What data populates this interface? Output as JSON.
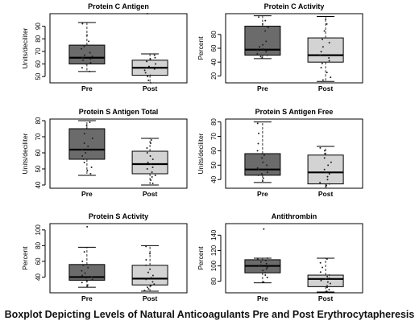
{
  "figure": {
    "caption": "Boxplot Depicting Levels of Natural Anticoagulants Pre and Post Erythrocytapheresis"
  },
  "colors": {
    "pre_box": "#6b6b6b",
    "post_box": "#d3d3d3",
    "axis": "#000000",
    "points": "#222222"
  },
  "chart_data": [
    {
      "type": "box",
      "title": "Protein C Antigen",
      "ylabel": "Units/deciliter",
      "ylim": [
        45,
        100
      ],
      "yticks": [
        50,
        60,
        70,
        80,
        90
      ],
      "categories": [
        "Pre",
        "Post"
      ],
      "boxes": [
        {
          "whislo": 54,
          "q1": 60,
          "med": 65,
          "q3": 75,
          "whishi": 93,
          "points": [
            54,
            57,
            60,
            61,
            63,
            64,
            65,
            66,
            67,
            69,
            72,
            74,
            78,
            83,
            92
          ]
        },
        {
          "whislo": 45,
          "q1": 51,
          "med": 57,
          "q3": 63,
          "whishi": 68,
          "points": [
            45,
            47,
            50,
            51,
            53,
            55,
            56,
            57,
            58,
            60,
            62,
            64,
            65,
            67,
            100
          ]
        }
      ]
    },
    {
      "type": "box",
      "title": "Protein C Activity",
      "ylabel": "Percent",
      "ylim": [
        10,
        110
      ],
      "yticks": [
        20,
        40,
        60,
        80
      ],
      "categories": [
        "Pre",
        "Post"
      ],
      "boxes": [
        {
          "whislo": 45,
          "q1": 50,
          "med": 58,
          "q3": 92,
          "whishi": 107,
          "points": [
            46,
            48,
            50,
            52,
            55,
            57,
            59,
            62,
            65,
            70,
            85,
            90,
            95,
            100,
            105
          ]
        },
        {
          "whislo": 12,
          "q1": 40,
          "med": 50,
          "q3": 75,
          "whishi": 106,
          "points": [
            14,
            18,
            25,
            32,
            38,
            42,
            46,
            50,
            55,
            62,
            68,
            73,
            85,
            95,
            102
          ]
        }
      ]
    },
    {
      "type": "box",
      "title": "Protein S Antigen Total",
      "ylabel": "Units/deciliter",
      "ylim": [
        38,
        81
      ],
      "yticks": [
        40,
        50,
        60,
        70,
        80
      ],
      "categories": [
        "Pre",
        "Post"
      ],
      "boxes": [
        {
          "whislo": 46,
          "q1": 56,
          "med": 62,
          "q3": 75,
          "whishi": 80,
          "points": [
            47,
            49,
            51,
            54,
            56,
            58,
            60,
            62,
            64,
            66,
            69,
            72,
            75,
            77,
            79
          ]
        },
        {
          "whislo": 40,
          "q1": 47,
          "med": 53,
          "q3": 61,
          "whishi": 69,
          "points": [
            41,
            43,
            45,
            46,
            48,
            50,
            51,
            53,
            54,
            56,
            58,
            60,
            63,
            66,
            68
          ]
        }
      ]
    },
    {
      "type": "box",
      "title": "Protein S Antigen Free",
      "ylabel": "Units/deciliter",
      "ylim": [
        34,
        82
      ],
      "yticks": [
        40,
        50,
        60,
        70,
        80
      ],
      "categories": [
        "Pre",
        "Post"
      ],
      "boxes": [
        {
          "whislo": 38,
          "q1": 43,
          "med": 47,
          "q3": 58,
          "whishi": 80,
          "points": [
            39,
            41,
            43,
            44,
            45,
            47,
            48,
            50,
            52,
            55,
            57,
            60,
            65,
            72,
            79
          ]
        },
        {
          "whislo": 34,
          "q1": 37,
          "med": 45,
          "q3": 57,
          "whishi": 63,
          "points": [
            35,
            36,
            37,
            38,
            40,
            42,
            44,
            45,
            47,
            50,
            52,
            55,
            58,
            60,
            62
          ]
        }
      ]
    },
    {
      "type": "box",
      "title": "Protein S Activity",
      "ylabel": "Percent",
      "ylim": [
        20,
        108
      ],
      "yticks": [
        40,
        60,
        80,
        100
      ],
      "categories": [
        "Pre",
        "Post"
      ],
      "boxes": [
        {
          "whislo": 27,
          "q1": 36,
          "med": 40,
          "q3": 56,
          "whishi": 78,
          "points": [
            28,
            30,
            33,
            35,
            37,
            39,
            40,
            42,
            45,
            48,
            52,
            55,
            60,
            72,
            104
          ]
        },
        {
          "whislo": 22,
          "q1": 30,
          "med": 38,
          "q3": 55,
          "whishi": 80,
          "points": [
            23,
            25,
            27,
            29,
            31,
            34,
            37,
            39,
            42,
            46,
            50,
            55,
            62,
            70,
            79
          ]
        }
      ]
    },
    {
      "type": "box",
      "title": "Antithrombin",
      "ylabel": "Percent",
      "ylim": [
        65,
        155
      ],
      "yticks": [
        80,
        100,
        120,
        140
      ],
      "categories": [
        "Pre",
        "Post"
      ],
      "boxes": [
        {
          "whislo": 78,
          "q1": 91,
          "med": 100,
          "q3": 108,
          "whishi": 110,
          "points": [
            79,
            85,
            88,
            91,
            94,
            96,
            98,
            100,
            101,
            103,
            105,
            107,
            109,
            110,
            148
          ]
        },
        {
          "whislo": 66,
          "q1": 73,
          "med": 83,
          "q3": 88,
          "whishi": 110,
          "points": [
            67,
            69,
            72,
            74,
            77,
            79,
            81,
            83,
            84,
            86,
            88,
            92,
            98,
            104,
            109
          ]
        }
      ]
    }
  ]
}
